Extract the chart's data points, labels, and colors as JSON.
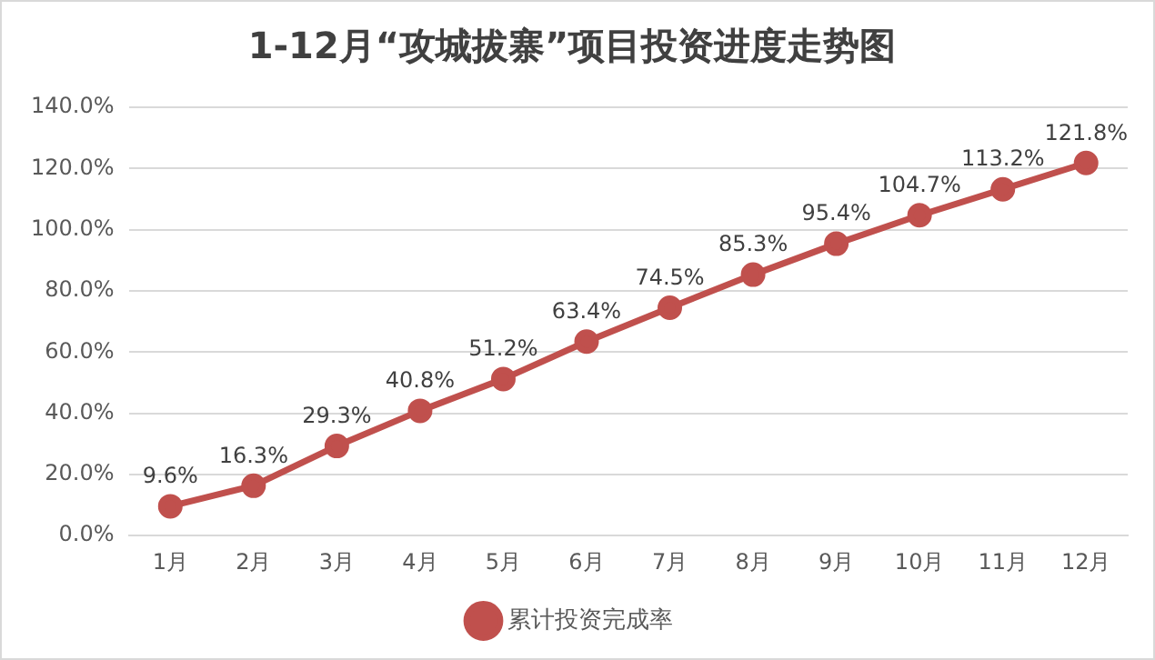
{
  "chart_data": {
    "type": "line",
    "title": "1-12月“攻城拔寨”项目投资进度走势图",
    "categories": [
      "1月",
      "2月",
      "3月",
      "4月",
      "5月",
      "6月",
      "7月",
      "8月",
      "9月",
      "10月",
      "11月",
      "12月"
    ],
    "series": [
      {
        "name": "累计投资完成率",
        "color": "#c0504d",
        "values": [
          9.6,
          16.3,
          29.3,
          40.8,
          51.2,
          63.4,
          74.5,
          85.3,
          95.4,
          104.7,
          113.2,
          121.8
        ],
        "value_labels": [
          "9.6%",
          "16.3%",
          "29.3%",
          "40.8%",
          "51.2%",
          "63.4%",
          "74.5%",
          "85.3%",
          "95.4%",
          "104.7%",
          "113.2%",
          "121.8%"
        ]
      }
    ],
    "ylim": [
      0,
      140
    ],
    "yticks": [
      {
        "value": 0,
        "label": "0.0%"
      },
      {
        "value": 20,
        "label": "20.0%"
      },
      {
        "value": 40,
        "label": "40.0%"
      },
      {
        "value": 60,
        "label": "60.0%"
      },
      {
        "value": 80,
        "label": "80.0%"
      },
      {
        "value": 100,
        "label": "100.0%"
      },
      {
        "value": 120,
        "label": "120.0%"
      },
      {
        "value": 140,
        "label": "140.0%"
      }
    ],
    "grid": "y",
    "legend": "bottom",
    "marker": "circle",
    "line_style": "solid"
  }
}
